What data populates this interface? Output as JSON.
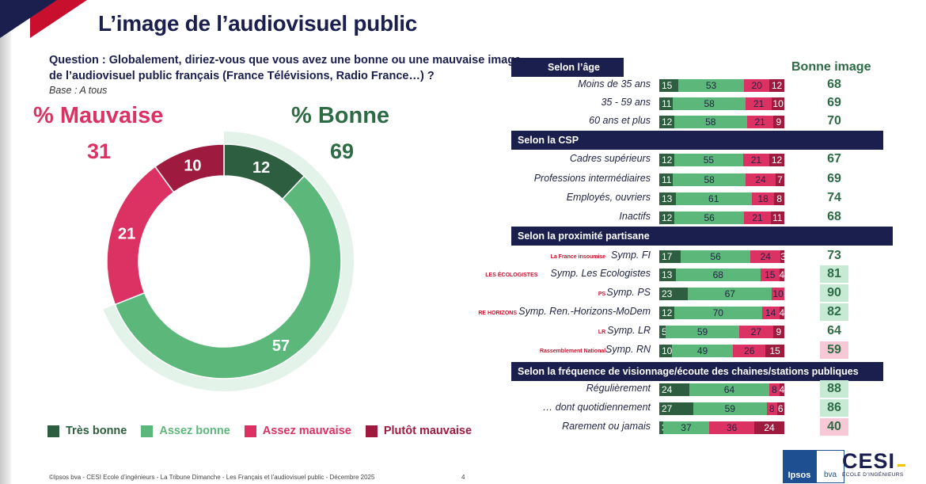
{
  "title": "L’image de l’audiovisuel public",
  "question_line1": "Question :   Globalement, diriez-vous que vous avez une bonne ou une mauvaise image",
  "question_line2": "de l’audiovisuel public français (France Télévisions, Radio France…) ?",
  "base": "Base : A tous",
  "mauvaise": {
    "label": "% Mauvaise",
    "value": "31"
  },
  "bonne": {
    "label": "% Bonne",
    "value": "69"
  },
  "legend": [
    {
      "label": "Très bonne",
      "color": "#2e5e40"
    },
    {
      "label": "Assez bonne",
      "color": "#5cb87a"
    },
    {
      "label": "Assez mauvaise",
      "color": "#dc3263"
    },
    {
      "label": "Plutôt mauvaise",
      "color": "#9e1a3e"
    }
  ],
  "bonne_image_header": "Bonne image",
  "chart_data": [
    {
      "type": "pie",
      "title": "Image de l’audiovisuel public",
      "categories": [
        "Très bonne",
        "Assez bonne",
        "Assez mauvaise",
        "Plutôt mauvaise"
      ],
      "values": [
        12,
        57,
        21,
        10
      ],
      "colors": [
        "#2e5e40",
        "#5cb87a",
        "#dc3263",
        "#9e1a3e"
      ]
    },
    {
      "type": "bar",
      "orientation": "horizontal-stacked",
      "series_names": [
        "Très bonne",
        "Assez bonne",
        "Assez mauvaise",
        "Plutôt mauvaise"
      ],
      "sections": [
        {
          "title": "Selon l’âge",
          "rows": [
            {
              "label": "Moins de 35 ans",
              "values": [
                15,
                53,
                20,
                12
              ],
              "total": 68,
              "highlight": ""
            },
            {
              "label": "35 - 59 ans",
              "values": [
                11,
                58,
                21,
                10
              ],
              "total": 69,
              "highlight": ""
            },
            {
              "label": "60 ans et plus",
              "values": [
                12,
                58,
                21,
                9
              ],
              "total": 70,
              "highlight": ""
            }
          ]
        },
        {
          "title": "Selon la CSP",
          "rows": [
            {
              "label": "Cadres supérieurs",
              "values": [
                12,
                55,
                21,
                12
              ],
              "total": 67,
              "highlight": ""
            },
            {
              "label": "Professions intermédiaires",
              "values": [
                11,
                58,
                24,
                7
              ],
              "total": 69,
              "highlight": ""
            },
            {
              "label": "Employés, ouvriers",
              "values": [
                13,
                61,
                18,
                8
              ],
              "total": 74,
              "highlight": ""
            },
            {
              "label": "Inactifs",
              "values": [
                12,
                56,
                21,
                11
              ],
              "total": 68,
              "highlight": ""
            }
          ]
        },
        {
          "title": "Selon la proximité partisane",
          "rows": [
            {
              "label": "Symp. FI",
              "values": [
                17,
                56,
                24,
                3
              ],
              "total": 73,
              "highlight": "",
              "logo": "La France insoumise"
            },
            {
              "label": "Symp. Les Ecologistes",
              "values": [
                13,
                68,
                15,
                4
              ],
              "total": 81,
              "highlight": "hi",
              "logo": "LES ÉCOLOGISTES"
            },
            {
              "label": "Symp. PS",
              "values": [
                23,
                67,
                10,
                0
              ],
              "total": 90,
              "highlight": "hi",
              "logo": "PS"
            },
            {
              "label": "Symp. Ren.-Horizons-MoDem",
              "values": [
                12,
                70,
                14,
                4
              ],
              "total": 82,
              "highlight": "hi",
              "logo": "RE HORIZONS"
            },
            {
              "label": "Symp. LR",
              "values": [
                5,
                59,
                27,
                9
              ],
              "total": 64,
              "highlight": "",
              "logo": "LR"
            },
            {
              "label": "Symp. RN",
              "values": [
                10,
                49,
                26,
                15
              ],
              "total": 59,
              "highlight": "lo",
              "logo": "Rassemblement National"
            }
          ]
        },
        {
          "title": "Selon la fréquence de visionnage/écoute des chaines/stations publiques",
          "rows": [
            {
              "label": "Régulièrement",
              "values": [
                24,
                64,
                8,
                4
              ],
              "total": 88,
              "highlight": "hi"
            },
            {
              "label": "… dont quotidiennement",
              "values": [
                27,
                59,
                8,
                6
              ],
              "total": 86,
              "highlight": "hi"
            },
            {
              "label": "Rarement ou jamais",
              "values": [
                3,
                37,
                36,
                24
              ],
              "total": 40,
              "highlight": "lo"
            }
          ]
        }
      ]
    }
  ],
  "footer": "©Ipsos bva - CESI Ecole d’ingénieurs - La Tribune Dimanche -  Les Français et l’audiovisuel public - Décembre 2025",
  "page_number": "4",
  "logos": {
    "ipsos": "Ipsos",
    "bva": "bva",
    "cesi": "CESI",
    "cesi_sub": "ÉCOLE D’INGÉNIEURS"
  }
}
